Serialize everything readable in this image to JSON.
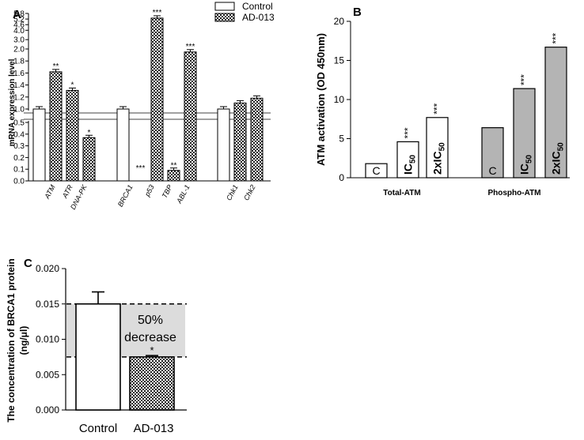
{
  "chart_data": [
    {
      "panel": "A",
      "type": "bar",
      "ylabel": "mRNA expression level",
      "yticks": [
        "0.0",
        "0.1",
        "0.2",
        "0.3",
        "0.4",
        "0.5",
        "1.0",
        "1.2",
        "1.4",
        "1.6",
        "1.8",
        "2.0",
        "3.0",
        "4.0",
        "4.6",
        "5.2",
        "5.8"
      ],
      "ylim": [
        0,
        5.8
      ],
      "axis_break": [
        0.5,
        1.0
      ],
      "legend": [
        "Control",
        "AD-013"
      ],
      "categories": [
        "ATM",
        "ATR",
        "DNA-PK",
        "BRCA1",
        "p53",
        "TBP",
        "ABL-1",
        "Chk1",
        "Chk2"
      ],
      "series": [
        {
          "name": "Control",
          "values": [
            1.0,
            null,
            null,
            1.0,
            null,
            null,
            null,
            1.0,
            null
          ]
        },
        {
          "name": "AD-013",
          "values": [
            1.62,
            1.31,
            0.37,
            0.0,
            5.3,
            0.09,
            1.95,
            1.1,
            1.18
          ]
        }
      ],
      "significance": [
        "**",
        "*",
        "*",
        "***",
        "***",
        "**",
        "***",
        "",
        ""
      ]
    },
    {
      "panel": "B",
      "type": "bar",
      "ylabel": "ATM activation (OD 450nm)",
      "ylim": [
        0,
        20
      ],
      "yticks": [
        "0",
        "5",
        "10",
        "15",
        "20"
      ],
      "groups": [
        "Total-ATM",
        "Phospho-ATM"
      ],
      "bar_labels": [
        "C",
        "IC",
        "2xIC",
        "C",
        "IC",
        "2xIC"
      ],
      "subscript": "50",
      "values": [
        1.8,
        4.6,
        7.7,
        6.4,
        11.4,
        16.7
      ],
      "significance": [
        "",
        "***",
        "***",
        "",
        "***",
        "***"
      ],
      "colors": {
        "total": "#ffffff",
        "phospho": "#b4b4b4"
      }
    },
    {
      "panel": "C",
      "type": "bar",
      "ylabel_lines": [
        "The concentration of BRCA1 protein",
        "(ng/μl)"
      ],
      "ylim": [
        0,
        0.02
      ],
      "yticks": [
        "0.000",
        "0.005",
        "0.010",
        "0.015",
        "0.020"
      ],
      "categories": [
        "Control",
        "AD-013"
      ],
      "values": [
        0.015,
        0.0075
      ],
      "errors": [
        0.0017,
        0.0002
      ],
      "significance": [
        "",
        "*"
      ],
      "annotation": [
        "50%",
        "decrease"
      ],
      "reference_lines": [
        0.015,
        0.0075
      ]
    }
  ]
}
